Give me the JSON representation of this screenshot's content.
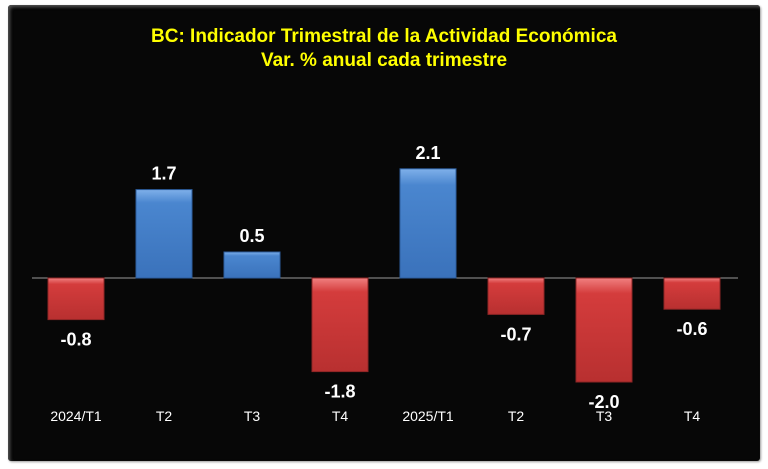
{
  "chart_data": {
    "type": "bar",
    "title": "BC: Indicador Trimestral de la Actividad Económica",
    "subtitle": "Var. % anual cada trimestre",
    "xlabel": "",
    "ylabel": "",
    "categories": [
      "2024/T1",
      "T2",
      "T3",
      "T4",
      "2025/T1",
      "T2",
      "T3",
      "T4"
    ],
    "values": [
      -0.8,
      1.7,
      0.5,
      -1.8,
      2.1,
      -0.7,
      -2.0,
      -0.6
    ],
    "data_labels": [
      "-0.8",
      "1.7",
      "0.5",
      "-1.8",
      "2.1",
      "-0.7",
      "-2.0",
      "-0.6"
    ],
    "grid": false,
    "legend": "none",
    "colors": {
      "positive": "#4a86cf",
      "negative": "#d43c3c",
      "background": "#070707",
      "title": "#ffff00",
      "text": "#ffffff"
    }
  }
}
